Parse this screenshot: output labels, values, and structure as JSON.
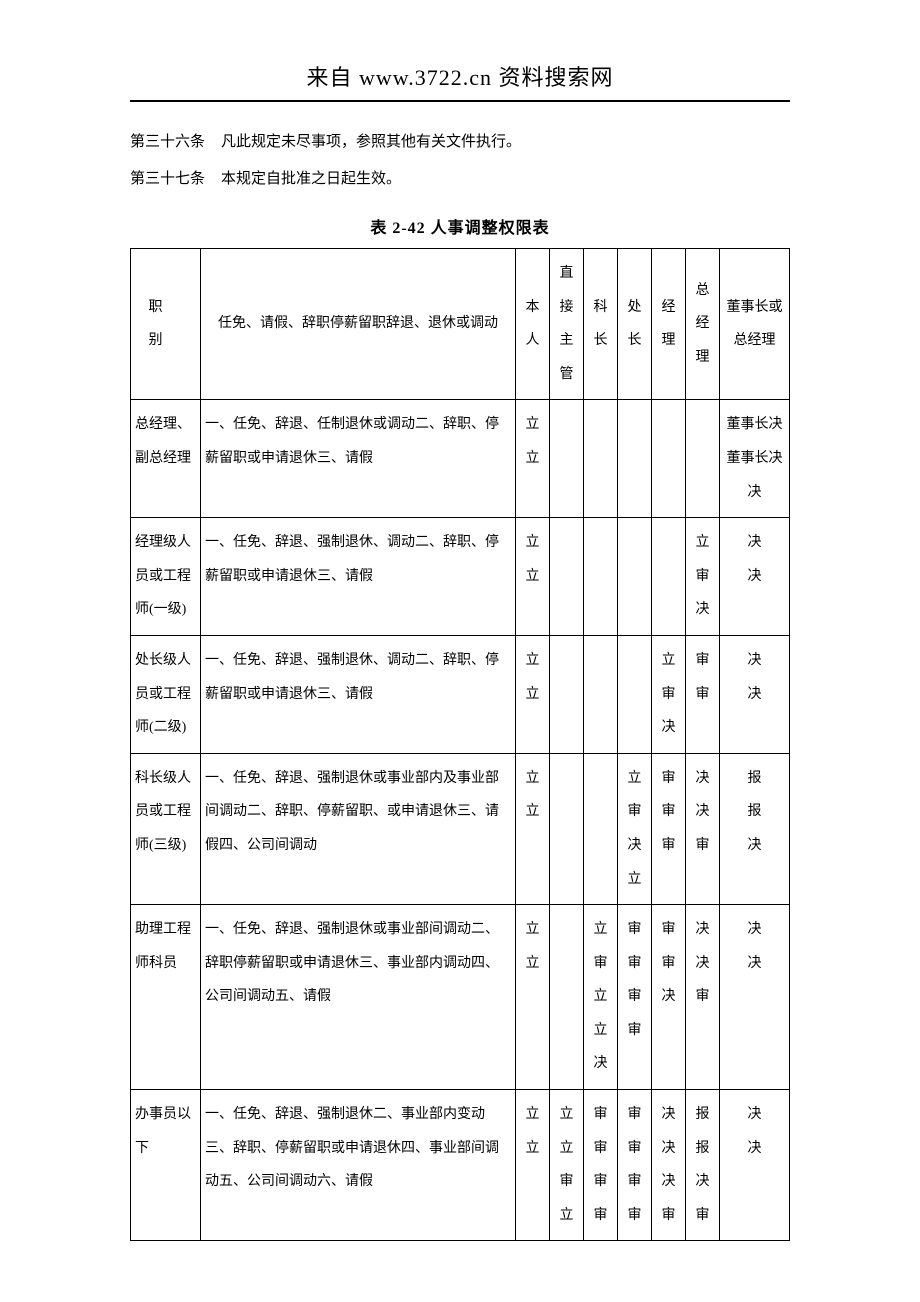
{
  "header": "来自  www.3722.cn 资料搜索网",
  "articles": [
    {
      "num": "第三十六条",
      "text": "凡此规定未尽事项，参照其他有关文件执行。"
    },
    {
      "num": "第三十七条",
      "text": "本规定自批准之日起生效。"
    }
  ],
  "table_title": "表  2-42  人事调整权限表",
  "table": {
    "headers": {
      "c0": "职别",
      "c1": "任免、请假、辞职停薪留职辞退、退休或调动",
      "c2": "本人",
      "c3": "直接主管",
      "c4": "科长",
      "c5": "处长",
      "c6": "经理",
      "c7": "总经理",
      "c8": "董事长或总经理"
    },
    "rows": [
      {
        "c0": "总经理、副总经理",
        "c1": "一、任免、辞退、任制退休或调动二、辞职、停薪留职或申请退休三、请假",
        "c2": "立立",
        "c3": "",
        "c4": "",
        "c5": "",
        "c6": "",
        "c7": "",
        "c8": "董事长决董事长决决"
      },
      {
        "c0": "经理级人员或工程师(一级)",
        "c1": "一、任免、辞退、强制退休、调动二、辞职、停薪留职或申请退休三、请假",
        "c2": "立立",
        "c3": "",
        "c4": "",
        "c5": "",
        "c6": "",
        "c7": "立审决",
        "c8": "决决"
      },
      {
        "c0": "处长级人员或工程师(二级)",
        "c1": "一、任免、辞退、强制退休、调动二、辞职、停薪留职或申请退休三、请假",
        "c2": "立立",
        "c3": "",
        "c4": "",
        "c5": "",
        "c6": "立审决",
        "c7": "审审",
        "c8": "决决"
      },
      {
        "c0": "科长级人员或工程师(三级)",
        "c1": "一、任免、辞退、强制退休或事业部内及事业部间调动二、辞职、停薪留职、或申请退休三、请假四、公司间调动",
        "c2": "立立",
        "c3": "",
        "c4": "",
        "c5": "立审决立",
        "c6": "审审审",
        "c7": "决决审",
        "c8": "报报决"
      },
      {
        "c0": "助理工程师科员",
        "c1": "一、任免、辞退、强制退休或事业部间调动二、辞职停薪留职或申请退休三、事业部内调动四、公司间调动五、请假",
        "c2": "立立",
        "c3": "",
        "c4": "立审立立决",
        "c5": "审审审审",
        "c6": "审审决",
        "c7": "决决审",
        "c8": "决决"
      },
      {
        "c0": "办事员以下",
        "c1": "一、任免、辞退、强制退休二、事业部内变动三、辞职、停薪留职或申请退休四、事业部间调动五、公司间调动六、请假",
        "c2": "立立",
        "c3": "立立审立",
        "c4": "审审审审",
        "c5": "审审审审",
        "c6": "决决决审",
        "c7": "报报决审",
        "c8": "决决"
      }
    ]
  },
  "colors": {
    "text": "#000000",
    "bg": "#ffffff",
    "border": "#000000"
  }
}
